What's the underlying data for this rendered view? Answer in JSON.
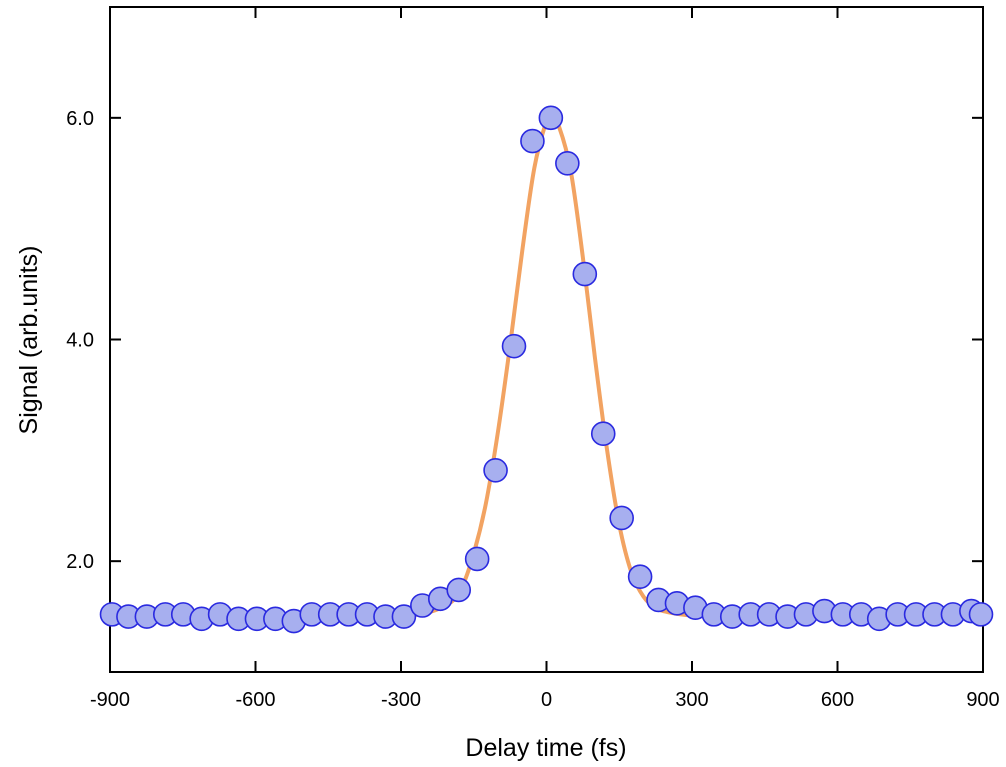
{
  "chart_data": {
    "type": "scatter",
    "title": "",
    "xlabel": "Delay time (fs)",
    "ylabel": "Signal (arb.units)",
    "xlim": [
      -900,
      900
    ],
    "ylim": [
      1.0,
      7.0
    ],
    "x_ticks": [
      -900,
      -600,
      -300,
      0,
      300,
      600,
      900
    ],
    "x_tick_labels": [
      "-900",
      "-600",
      "-300",
      "0",
      "300",
      "600",
      "900"
    ],
    "y_ticks": [
      2.0,
      4.0,
      6.0
    ],
    "y_tick_labels": [
      "2.0",
      "4.0",
      "6.0"
    ],
    "grid": false,
    "series": [
      {
        "kind": "points",
        "marker": "circle",
        "fill_color": "#a7afef",
        "edge_color": "#2a2ae0",
        "x": [
          -900,
          -862,
          -824,
          -786,
          -749,
          -711,
          -673,
          -635,
          -597,
          -559,
          -521,
          -484,
          -446,
          -408,
          -370,
          -332,
          -294,
          -256,
          -219,
          -181,
          -143,
          -105,
          -67,
          -29,
          9,
          43,
          79,
          117,
          155,
          193,
          231,
          269,
          307,
          345,
          383,
          421,
          459,
          497,
          535,
          573,
          611,
          649,
          686,
          724,
          762,
          800,
          838,
          876,
          900
        ],
        "y": [
          1.52,
          1.5,
          1.5,
          1.52,
          1.52,
          1.48,
          1.52,
          1.48,
          1.48,
          1.48,
          1.46,
          1.52,
          1.52,
          1.52,
          1.52,
          1.5,
          1.5,
          1.6,
          1.66,
          1.74,
          2.02,
          2.82,
          3.94,
          5.79,
          6.0,
          5.59,
          4.59,
          3.15,
          2.39,
          1.86,
          1.65,
          1.62,
          1.58,
          1.52,
          1.5,
          1.52,
          1.52,
          1.5,
          1.52,
          1.55,
          1.52,
          1.52,
          1.48,
          1.52,
          1.52,
          1.52,
          1.52,
          1.55,
          1.52
        ]
      },
      {
        "kind": "fit-line",
        "color": "#f2a362",
        "x": [
          -900,
          -600,
          -400,
          -300,
          -250,
          -200,
          -175,
          -150,
          -125,
          -100,
          -75,
          -50,
          -25,
          0,
          10,
          25,
          50,
          75,
          100,
          125,
          150,
          175,
          200,
          225,
          250,
          300,
          400,
          600,
          900
        ],
        "y": [
          1.5,
          1.5,
          1.5,
          1.51,
          1.53,
          1.62,
          1.76,
          2.07,
          2.52,
          3.17,
          3.95,
          4.8,
          5.55,
          5.97,
          6.0,
          5.93,
          5.52,
          4.74,
          3.83,
          3.0,
          2.33,
          1.9,
          1.68,
          1.58,
          1.54,
          1.51,
          1.5,
          1.5,
          1.5
        ]
      }
    ]
  }
}
